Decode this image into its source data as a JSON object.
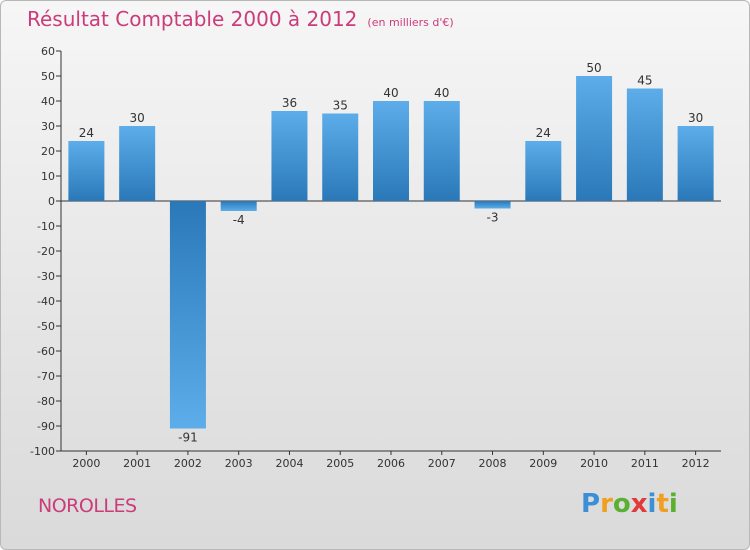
{
  "header": {
    "title": "Résultat Comptable 2000 à 2012",
    "subtitle": "(en milliers d'€)"
  },
  "footer": {
    "commune": "NOROLLES",
    "brand": "Proxiti",
    "brand_letters": [
      {
        "ch": "P",
        "color": "#3b8fd6"
      },
      {
        "ch": "r",
        "color": "#f0a020"
      },
      {
        "ch": "o",
        "color": "#5ab030"
      },
      {
        "ch": "x",
        "color": "#e03a3a"
      },
      {
        "ch": "i",
        "color": "#3b8fd6"
      },
      {
        "ch": "t",
        "color": "#f0a020"
      },
      {
        "ch": "i",
        "color": "#5ab030"
      }
    ]
  },
  "chart_data": {
    "type": "bar",
    "title": "Résultat Comptable 2000 à 2012",
    "ylabel": "",
    "xlabel": "",
    "categories": [
      "2000",
      "2001",
      "2002",
      "2003",
      "2004",
      "2005",
      "2006",
      "2007",
      "2008",
      "2009",
      "2010",
      "2011",
      "2012"
    ],
    "values": [
      24,
      30,
      -91,
      -4,
      36,
      35,
      40,
      40,
      -3,
      24,
      50,
      45,
      30
    ],
    "ylim": [
      -100,
      60
    ],
    "ytick_step": 10,
    "grid": false,
    "colors": {
      "bar_dark": "#2a78b8",
      "bar_light": "#5dadea"
    }
  }
}
